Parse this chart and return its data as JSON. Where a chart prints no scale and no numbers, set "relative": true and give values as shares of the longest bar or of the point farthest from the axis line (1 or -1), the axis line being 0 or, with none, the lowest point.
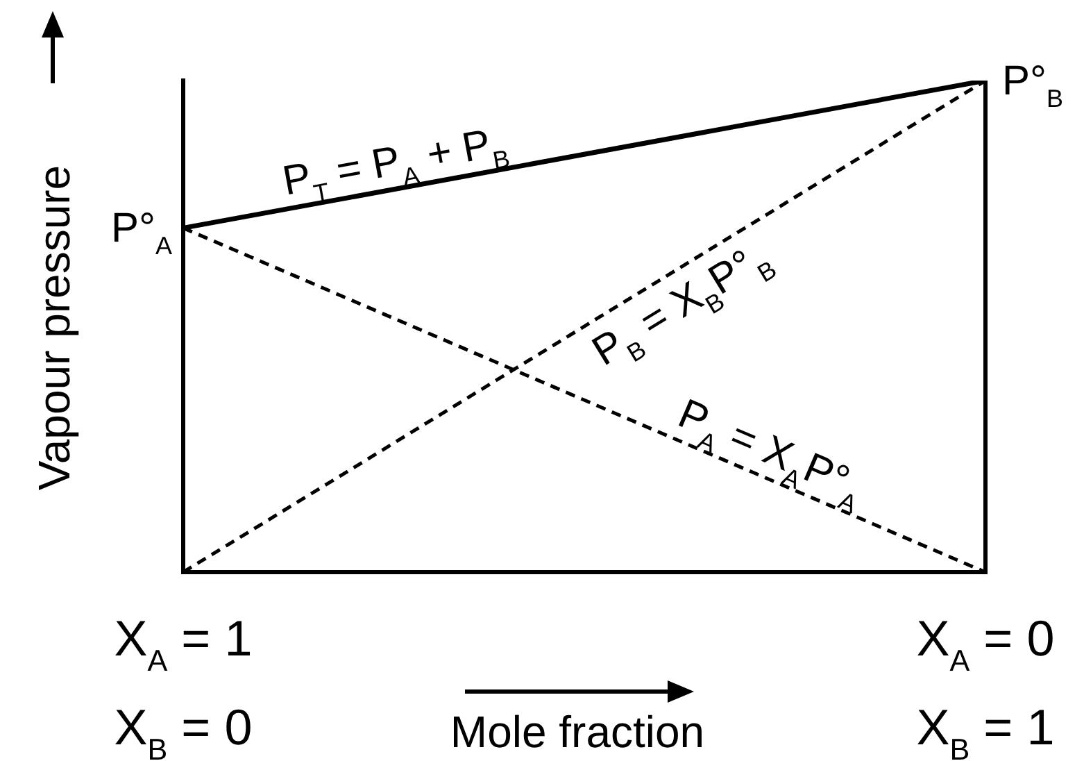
{
  "chart_data": {
    "type": "line",
    "relative": true,
    "xlabel": "Mole fraction",
    "ylabel": "Vapour pressure",
    "categories": [
      "X$_{A}$ = 1\nX$_{B}$ = 0",
      "X$_{A}$ = 0\nX$_{B}$ = 1"
    ],
    "series": [
      {
        "name": "P$_{T}$ = P$_{A}$ + P$_{B}$",
        "color": "#000000",
        "line_style": "solid",
        "values": [
          0.7,
          1
        ]
      },
      {
        "name": "P$_{B}$ = X$_{B}$P°$_{B}$",
        "color": "#000000",
        "line_style": "dashed",
        "values": [
          0,
          1
        ]
      },
      {
        "name": "P$_{A}$ = X$_{A}$P°$_{A}$",
        "color": "#000000",
        "line_style": "dashed",
        "values": [
          0.7,
          0
        ]
      }
    ],
    "annotations": [
      {
        "text": "P°$_{A}$",
        "x": "X$_{A}$ = 1\nX$_{B}$ = 0",
        "y": 0.7
      },
      {
        "text": "P°$_{B}$",
        "x": "X$_{A}$ = 0\nX$_{B}$ = 1",
        "y": 1
      }
    ],
    "marker": "none",
    "grid": "x",
    "legend": false,
    "tick_labels": "x"
  }
}
